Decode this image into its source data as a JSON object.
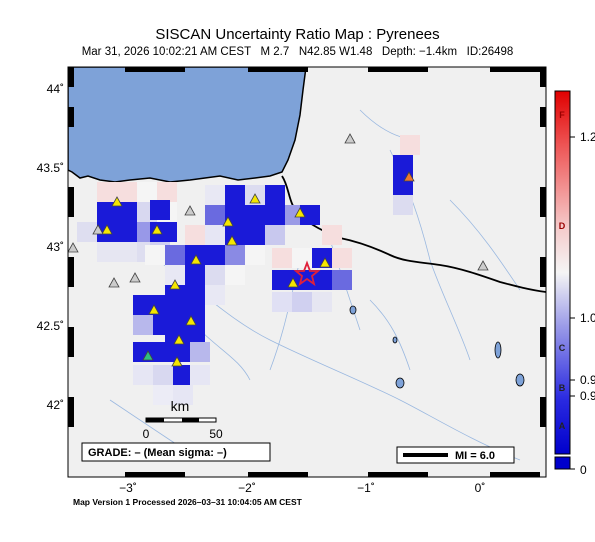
{
  "title": "SISCAN Uncertainty Ratio Map : Pyrenees",
  "subtitle": "Mar 31, 2026 10:02:21 AM CEST   M 2.7   N42.85 W1.48   Depth: −1.4km   ID:26498",
  "footer": "Map Version 1 Processed 2026–03–31 10:04:05 AM CEST",
  "axes": {
    "lat_labels": [
      "44˚",
      "43.5˚",
      "43˚",
      "42.5˚",
      "42˚"
    ],
    "lon_labels": [
      "−3˚",
      "−2˚",
      "−1˚",
      "0˚"
    ]
  },
  "scale_bar": {
    "unit": "km",
    "labels": [
      "0",
      "50"
    ]
  },
  "grade_box": "GRADE: – (Mean sigma: –)",
  "mi_legend": "MI = 6.0",
  "colorbar": {
    "letters": [
      "F",
      "D",
      "C",
      "B",
      "A"
    ],
    "values": [
      "1.2",
      "1.0",
      "0.9",
      "0.9",
      "0"
    ]
  },
  "colors": {
    "sea": "#7ea2d8",
    "land": "#f0f0f0",
    "epicenter": "#e0203a",
    "grid_dark": "#0000cc"
  },
  "epicenter": {
    "lat": 42.85,
    "lon": -1.48
  }
}
